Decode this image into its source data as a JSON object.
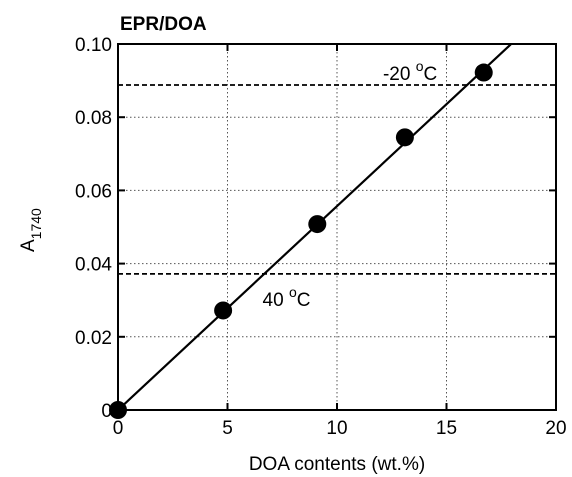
{
  "chart_data": {
    "type": "scatter",
    "title": "EPR/DOA",
    "xlabel": "DOA contents (wt.%)",
    "ylabel": {
      "main": "A",
      "subscript": "1740"
    },
    "xlim": [
      0,
      20
    ],
    "ylim": [
      0,
      0.1
    ],
    "x_ticks": [
      0,
      5,
      10,
      15,
      20
    ],
    "x_tick_labels": [
      "0",
      "5",
      "10",
      "15",
      "20"
    ],
    "y_ticks": [
      0,
      0.02,
      0.04,
      0.06,
      0.08,
      0.1
    ],
    "y_tick_labels": [
      "0",
      "0.02",
      "0.04",
      "0.06",
      "0.08",
      "0.10"
    ],
    "grid": true,
    "series": [
      {
        "x": [
          0,
          4.8,
          9.1,
          13.1,
          16.7
        ],
        "y": [
          0,
          0.0272,
          0.0508,
          0.0745,
          0.0922
        ]
      }
    ],
    "fit_line": {
      "slope": 0.00557,
      "intercept": 0.0,
      "x_range": [
        0,
        18
      ]
    },
    "reference_lines": [
      {
        "y": 0.0888,
        "label": {
          "main": "-20 ",
          "sup": "o",
          "unit": "C"
        },
        "label_x": 12.1
      },
      {
        "y": 0.0372,
        "label": {
          "main": "40 ",
          "sup": "o",
          "unit": "C"
        },
        "label_x": 6.6
      }
    ]
  }
}
